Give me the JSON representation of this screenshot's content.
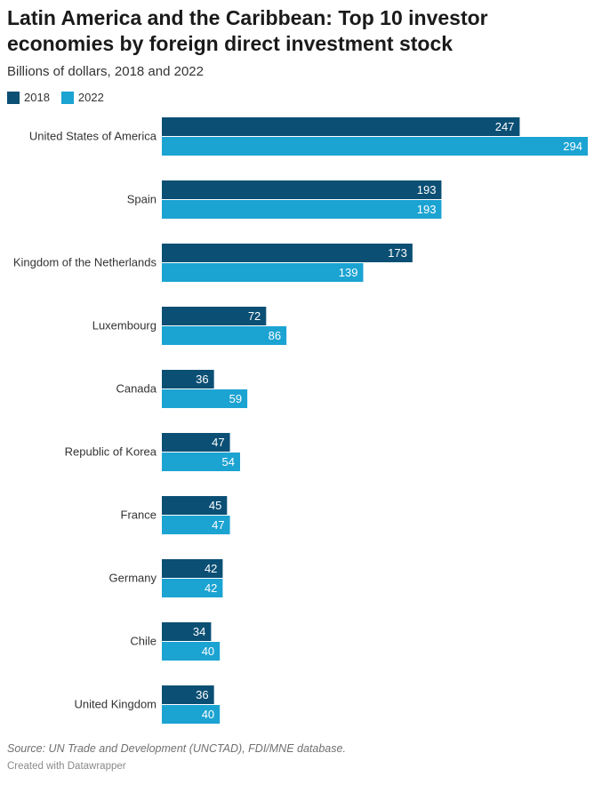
{
  "header": {
    "title": "Latin America and the Caribbean: Top 10 investor economies by foreign direct investment stock",
    "subtitle": "Billions of dollars, 2018 and 2022"
  },
  "footer": {
    "source": "Source: UN Trade and Development (UNCTAD), FDI/MNE database.",
    "credit": "Created with Datawrapper"
  },
  "colors": {
    "series_2018": "#0b4f74",
    "series_2022": "#1ba3d2",
    "label_text": "#ffffff",
    "category_text": "#333333"
  },
  "chart_data": {
    "type": "bar",
    "orientation": "horizontal",
    "legend_position": "top-left",
    "grid": false,
    "xlim": [
      0,
      294
    ],
    "categories": [
      "United States of America",
      "Spain",
      "Kingdom of the Netherlands",
      "Luxembourg",
      "Canada",
      "Republic of Korea",
      "France",
      "Germany",
      "Chile",
      "United Kingdom"
    ],
    "series": [
      {
        "name": "2018",
        "values": [
          247,
          193,
          173,
          72,
          36,
          47,
          45,
          42,
          34,
          36
        ]
      },
      {
        "name": "2022",
        "values": [
          294,
          193,
          139,
          86,
          59,
          54,
          47,
          42,
          40,
          40
        ]
      }
    ]
  }
}
